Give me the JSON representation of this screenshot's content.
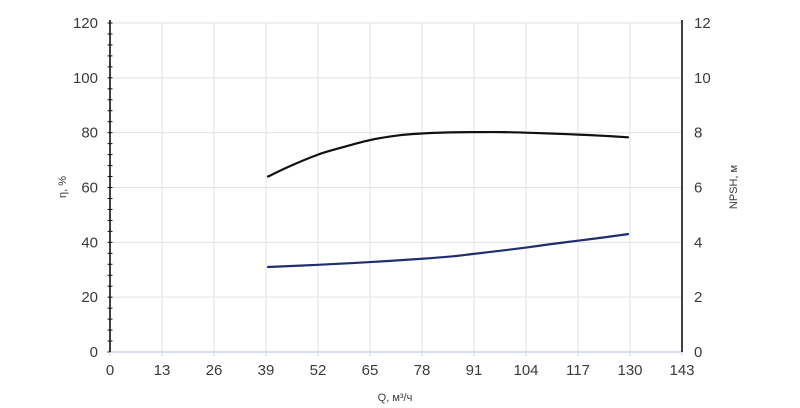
{
  "chart_data": {
    "type": "line",
    "xlabel": "Q, м³/ч",
    "ylabel_left": "η, %",
    "ylabel_right": "NPSH, м",
    "x_ticks": [
      0,
      13,
      26,
      39,
      52,
      65,
      78,
      91,
      104,
      117,
      130,
      143
    ],
    "xlim": [
      0,
      143
    ],
    "y_left_ticks": [
      0,
      20,
      40,
      60,
      80,
      100,
      120
    ],
    "ylim_left": [
      0,
      120
    ],
    "y_right_ticks": [
      0,
      2,
      4,
      6,
      8,
      10,
      12
    ],
    "ylim_right": [
      0,
      12
    ],
    "grid": true,
    "series": [
      {
        "axis": "left",
        "color": "#111111",
        "x": [
          39.5,
          45,
          52,
          58,
          65,
          72,
          78,
          85,
          91,
          98,
          104,
          110,
          117,
          124,
          129.5
        ],
        "y": [
          64,
          67.8,
          72,
          74.6,
          77.3,
          79,
          79.7,
          80.1,
          80.2,
          80.2,
          80,
          79.7,
          79.3,
          78.8,
          78.3
        ]
      },
      {
        "axis": "right",
        "color": "#1f2f6e",
        "x": [
          39.5,
          52,
          65,
          78,
          85,
          91,
          98,
          104,
          110,
          117,
          124,
          129.5
        ],
        "y": [
          3.1,
          3.18,
          3.28,
          3.4,
          3.48,
          3.58,
          3.7,
          3.81,
          3.93,
          4.06,
          4.19,
          4.3
        ]
      }
    ]
  }
}
